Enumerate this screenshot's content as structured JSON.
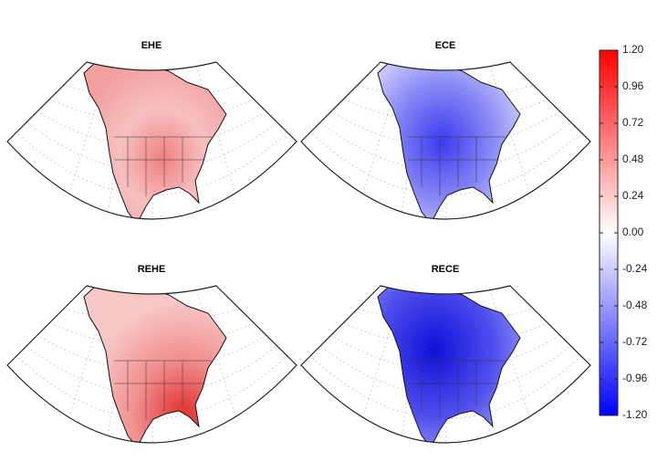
{
  "panels": [
    {
      "title": "EHE"
    },
    {
      "title": "ECE"
    },
    {
      "title": "REHE"
    },
    {
      "title": "RECE"
    }
  ],
  "colorbar": {
    "lim": [
      -1.2,
      1.2
    ],
    "colors": [
      "#0000ff",
      "#ffffff",
      "#ff0000"
    ],
    "ticks": [
      {
        "value": 1.2,
        "label": "1.20"
      },
      {
        "value": 0.96,
        "label": "0.96"
      },
      {
        "value": 0.72,
        "label": "0.72"
      },
      {
        "value": 0.48,
        "label": "0.48"
      },
      {
        "value": 0.24,
        "label": "0.24"
      },
      {
        "value": 0,
        "label": "0.00"
      },
      {
        "value": -0.24,
        "label": "-0.24"
      },
      {
        "value": -0.48,
        "label": "-0.48"
      },
      {
        "value": -0.72,
        "label": "-0.72"
      },
      {
        "value": -0.96,
        "label": "-0.96"
      },
      {
        "value": -1.2,
        "label": "-1.20"
      }
    ]
  }
}
